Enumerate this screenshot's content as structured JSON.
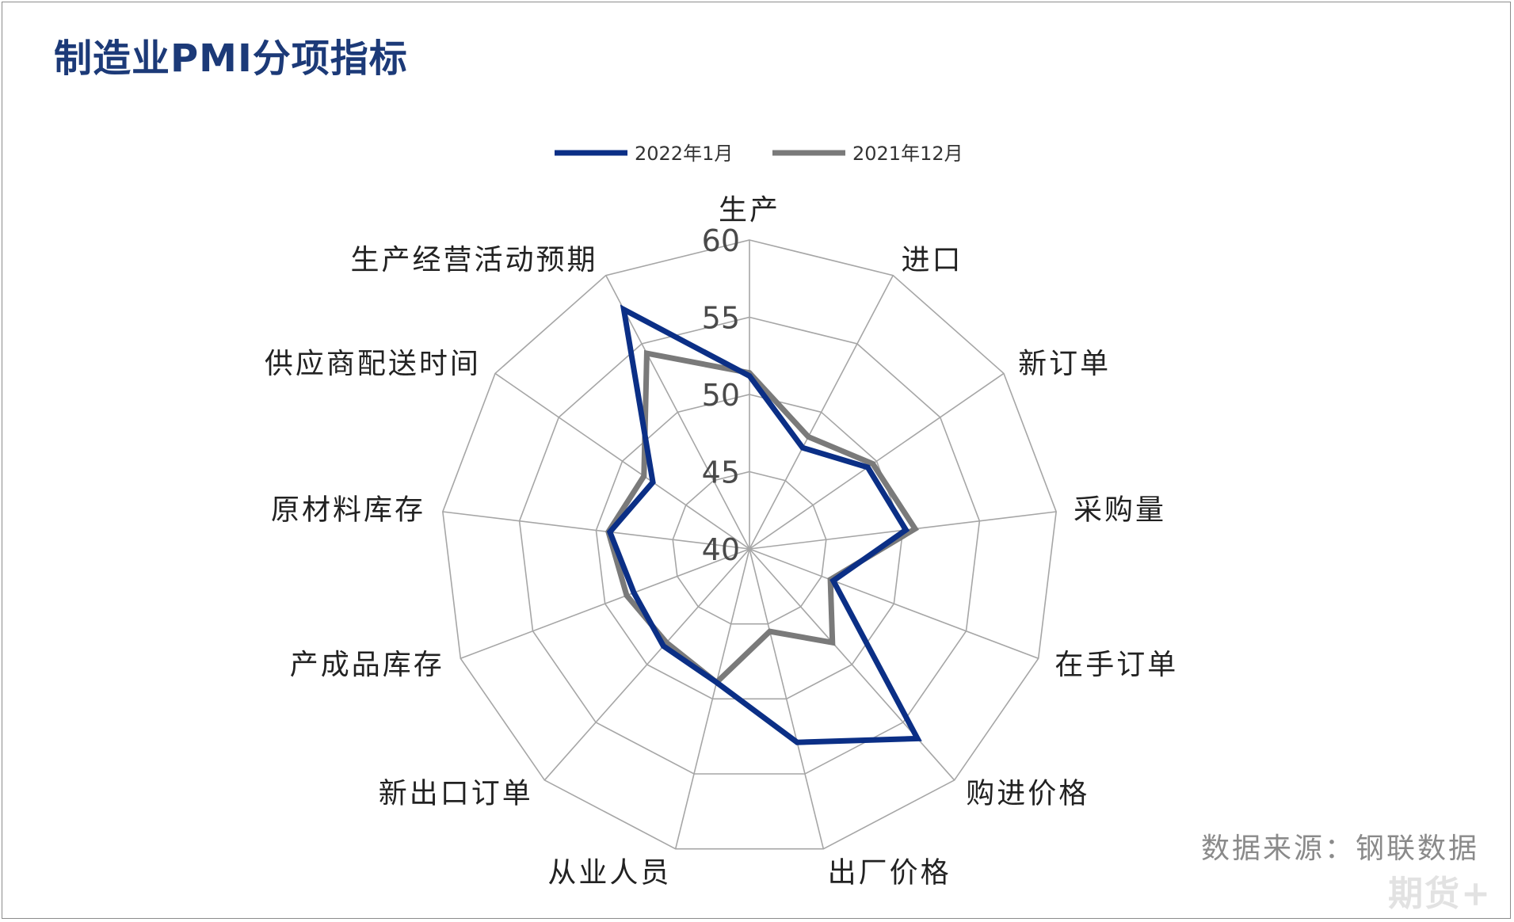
{
  "title": "制造业PMI分项指标",
  "source": "数据来源：钢联数据",
  "watermark": "期货+",
  "chart_data": {
    "type": "radar",
    "title": "",
    "categories": [
      "生产",
      "进口",
      "新订单",
      "采购量",
      "在手订单",
      "购进价格",
      "出厂价格",
      "从业人员",
      "新出口订单",
      "产成品库存",
      "原材料库存",
      "供应商配送时间",
      "生产经营活动预期"
    ],
    "radial_ticks": [
      "40",
      "45",
      "50",
      "55",
      "60"
    ],
    "rlim": [
      40,
      60
    ],
    "grid": true,
    "legend_position": "top",
    "series": [
      {
        "name": "2022年1月",
        "values": [
          51.2,
          47.4,
          49.3,
          50.2,
          45.8,
          56.4,
          52.9,
          48.9,
          48.4,
          48.0,
          49.1,
          47.6,
          57.5
        ],
        "color": "#0b2f86"
      },
      {
        "name": "2021年12月",
        "values": [
          51.4,
          48.2,
          49.7,
          50.8,
          45.6,
          48.1,
          45.5,
          48.9,
          48.1,
          48.5,
          49.2,
          48.3,
          54.3
        ],
        "color": "#7a7a7a"
      }
    ]
  }
}
